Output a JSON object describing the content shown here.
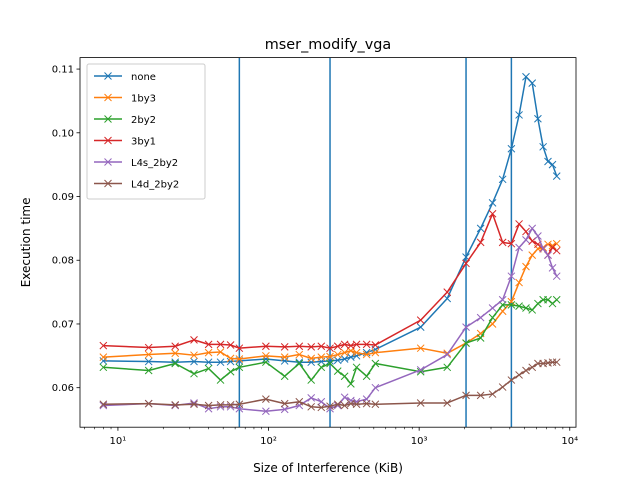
{
  "chart_data": {
    "type": "line",
    "title": "mser_modify_vga",
    "xlabel": "Size of Interference (KiB)",
    "ylabel": "Execution time",
    "xscale": "log",
    "xlim": [
      5.6,
      11000
    ],
    "ylim": [
      0.0538,
      0.1118
    ],
    "yticks": [
      0.06,
      0.07,
      0.08,
      0.09,
      0.1,
      0.11
    ],
    "ytick_labels": [
      "0.06",
      "0.07",
      "0.08",
      "0.09",
      "0.10",
      "0.11"
    ],
    "xticks": [
      10,
      100,
      1000,
      10000
    ],
    "xtick_labels": [
      "10¹",
      "10²",
      "10³",
      "10⁴"
    ],
    "vlines": [
      64,
      256,
      2048,
      4096
    ],
    "vline_color": "#1f77b4",
    "legend_position": "upper left",
    "grid": false,
    "series": [
      {
        "name": "none",
        "color": "#1f77b4",
        "points": [
          [
            8,
            0.0642
          ],
          [
            16,
            0.0641
          ],
          [
            24,
            0.064
          ],
          [
            32,
            0.0641
          ],
          [
            40,
            0.064
          ],
          [
            48,
            0.064
          ],
          [
            56,
            0.0641
          ],
          [
            64,
            0.0642
          ],
          [
            96,
            0.0645
          ],
          [
            128,
            0.0642
          ],
          [
            160,
            0.064
          ],
          [
            192,
            0.064
          ],
          [
            224,
            0.0641
          ],
          [
            256,
            0.0642
          ],
          [
            288,
            0.0643
          ],
          [
            320,
            0.0645
          ],
          [
            352,
            0.0648
          ],
          [
            384,
            0.065
          ],
          [
            448,
            0.0655
          ],
          [
            512,
            0.066
          ],
          [
            1024,
            0.0695
          ],
          [
            1536,
            0.074
          ],
          [
            2048,
            0.0805
          ],
          [
            2560,
            0.085
          ],
          [
            3072,
            0.089
          ],
          [
            3584,
            0.0927
          ],
          [
            4096,
            0.0975
          ],
          [
            4608,
            0.1028
          ],
          [
            5120,
            0.1088
          ],
          [
            5632,
            0.1078
          ],
          [
            6144,
            0.1022
          ],
          [
            6656,
            0.0978
          ],
          [
            7168,
            0.0955
          ],
          [
            7680,
            0.095
          ],
          [
            8192,
            0.0932
          ]
        ]
      },
      {
        "name": "1by3",
        "color": "#ff7f0e",
        "points": [
          [
            8,
            0.0648
          ],
          [
            16,
            0.0652
          ],
          [
            24,
            0.0654
          ],
          [
            32,
            0.0651
          ],
          [
            40,
            0.0655
          ],
          [
            48,
            0.0656
          ],
          [
            56,
            0.0646
          ],
          [
            64,
            0.0645
          ],
          [
            96,
            0.065
          ],
          [
            128,
            0.0648
          ],
          [
            160,
            0.0652
          ],
          [
            192,
            0.0646
          ],
          [
            224,
            0.0648
          ],
          [
            256,
            0.0649
          ],
          [
            288,
            0.0652
          ],
          [
            320,
            0.0655
          ],
          [
            352,
            0.0658
          ],
          [
            384,
            0.0655
          ],
          [
            448,
            0.0652
          ],
          [
            512,
            0.0655
          ],
          [
            1024,
            0.0662
          ],
          [
            1536,
            0.0654
          ],
          [
            2048,
            0.067
          ],
          [
            2560,
            0.0685
          ],
          [
            3072,
            0.07
          ],
          [
            3584,
            0.072
          ],
          [
            4096,
            0.0735
          ],
          [
            4608,
            0.0765
          ],
          [
            5120,
            0.079
          ],
          [
            5632,
            0.0808
          ],
          [
            6144,
            0.0818
          ],
          [
            6656,
            0.082
          ],
          [
            7168,
            0.0825
          ],
          [
            7680,
            0.0823
          ],
          [
            8192,
            0.0826
          ]
        ]
      },
      {
        "name": "2by2",
        "color": "#2ca02c",
        "points": [
          [
            8,
            0.0632
          ],
          [
            16,
            0.0627
          ],
          [
            24,
            0.0638
          ],
          [
            32,
            0.0622
          ],
          [
            40,
            0.063
          ],
          [
            48,
            0.0612
          ],
          [
            56,
            0.0625
          ],
          [
            64,
            0.0632
          ],
          [
            96,
            0.064
          ],
          [
            128,
            0.0618
          ],
          [
            160,
            0.0638
          ],
          [
            192,
            0.0612
          ],
          [
            224,
            0.0632
          ],
          [
            256,
            0.0638
          ],
          [
            288,
            0.0626
          ],
          [
            320,
            0.0618
          ],
          [
            352,
            0.0606
          ],
          [
            384,
            0.0632
          ],
          [
            448,
            0.0618
          ],
          [
            512,
            0.0638
          ],
          [
            1024,
            0.0625
          ],
          [
            1536,
            0.0632
          ],
          [
            2048,
            0.067
          ],
          [
            2560,
            0.0678
          ],
          [
            3072,
            0.071
          ],
          [
            3584,
            0.073
          ],
          [
            4096,
            0.073
          ],
          [
            4608,
            0.0728
          ],
          [
            5120,
            0.0725
          ],
          [
            5632,
            0.0722
          ],
          [
            6144,
            0.0732
          ],
          [
            6656,
            0.0738
          ],
          [
            7168,
            0.0738
          ],
          [
            7680,
            0.0732
          ],
          [
            8192,
            0.0738
          ]
        ]
      },
      {
        "name": "3by1",
        "color": "#d62728",
        "points": [
          [
            8,
            0.0666
          ],
          [
            16,
            0.0663
          ],
          [
            24,
            0.0665
          ],
          [
            32,
            0.0675
          ],
          [
            40,
            0.0668
          ],
          [
            48,
            0.0668
          ],
          [
            56,
            0.0667
          ],
          [
            64,
            0.0662
          ],
          [
            96,
            0.0665
          ],
          [
            128,
            0.0664
          ],
          [
            160,
            0.0665
          ],
          [
            192,
            0.0664
          ],
          [
            224,
            0.0665
          ],
          [
            256,
            0.0662
          ],
          [
            288,
            0.0665
          ],
          [
            320,
            0.0668
          ],
          [
            352,
            0.0666
          ],
          [
            384,
            0.0668
          ],
          [
            448,
            0.0668
          ],
          [
            512,
            0.0667
          ],
          [
            1024,
            0.0706
          ],
          [
            1536,
            0.075
          ],
          [
            2048,
            0.0795
          ],
          [
            2560,
            0.0828
          ],
          [
            3072,
            0.0873
          ],
          [
            3584,
            0.0828
          ],
          [
            4096,
            0.0826
          ],
          [
            4608,
            0.0857
          ],
          [
            5120,
            0.0845
          ],
          [
            5632,
            0.083
          ],
          [
            6144,
            0.0825
          ],
          [
            6656,
            0.0818
          ],
          [
            7168,
            0.0808
          ],
          [
            7680,
            0.082
          ],
          [
            8192,
            0.0815
          ]
        ]
      },
      {
        "name": "L4s_2by2",
        "color": "#9467bd",
        "points": [
          [
            8,
            0.0572
          ],
          [
            16,
            0.0575
          ],
          [
            24,
            0.0572
          ],
          [
            32,
            0.0576
          ],
          [
            40,
            0.0567
          ],
          [
            48,
            0.057
          ],
          [
            56,
            0.057
          ],
          [
            64,
            0.0567
          ],
          [
            96,
            0.0563
          ],
          [
            128,
            0.0566
          ],
          [
            160,
            0.0572
          ],
          [
            192,
            0.0584
          ],
          [
            224,
            0.0578
          ],
          [
            256,
            0.0567
          ],
          [
            288,
            0.0572
          ],
          [
            320,
            0.0585
          ],
          [
            352,
            0.058
          ],
          [
            384,
            0.0578
          ],
          [
            448,
            0.0582
          ],
          [
            512,
            0.06
          ],
          [
            1024,
            0.0628
          ],
          [
            1536,
            0.0652
          ],
          [
            2048,
            0.0695
          ],
          [
            2560,
            0.071
          ],
          [
            3072,
            0.0725
          ],
          [
            3584,
            0.0738
          ],
          [
            4096,
            0.0775
          ],
          [
            4608,
            0.082
          ],
          [
            5120,
            0.0832
          ],
          [
            5632,
            0.085
          ],
          [
            6144,
            0.0838
          ],
          [
            6656,
            0.0818
          ],
          [
            7168,
            0.0808
          ],
          [
            7680,
            0.0788
          ],
          [
            8192,
            0.0775
          ]
        ]
      },
      {
        "name": "L4d_2by2",
        "color": "#8c564b",
        "points": [
          [
            8,
            0.0574
          ],
          [
            16,
            0.0575
          ],
          [
            24,
            0.0573
          ],
          [
            32,
            0.0574
          ],
          [
            40,
            0.0572
          ],
          [
            48,
            0.0573
          ],
          [
            56,
            0.0573
          ],
          [
            64,
            0.0574
          ],
          [
            96,
            0.0582
          ],
          [
            128,
            0.0575
          ],
          [
            160,
            0.0578
          ],
          [
            192,
            0.057
          ],
          [
            224,
            0.0569
          ],
          [
            256,
            0.0571
          ],
          [
            288,
            0.0574
          ],
          [
            320,
            0.0572
          ],
          [
            352,
            0.0575
          ],
          [
            384,
            0.0574
          ],
          [
            448,
            0.0575
          ],
          [
            512,
            0.0574
          ],
          [
            1024,
            0.0576
          ],
          [
            1536,
            0.0576
          ],
          [
            2048,
            0.0588
          ],
          [
            2560,
            0.0588
          ],
          [
            3072,
            0.059
          ],
          [
            3584,
            0.0601
          ],
          [
            4096,
            0.0612
          ],
          [
            4608,
            0.062
          ],
          [
            5120,
            0.0627
          ],
          [
            5632,
            0.0632
          ],
          [
            6144,
            0.0638
          ],
          [
            6656,
            0.0638
          ],
          [
            7168,
            0.0639
          ],
          [
            7680,
            0.064
          ],
          [
            8192,
            0.064
          ]
        ]
      }
    ]
  }
}
